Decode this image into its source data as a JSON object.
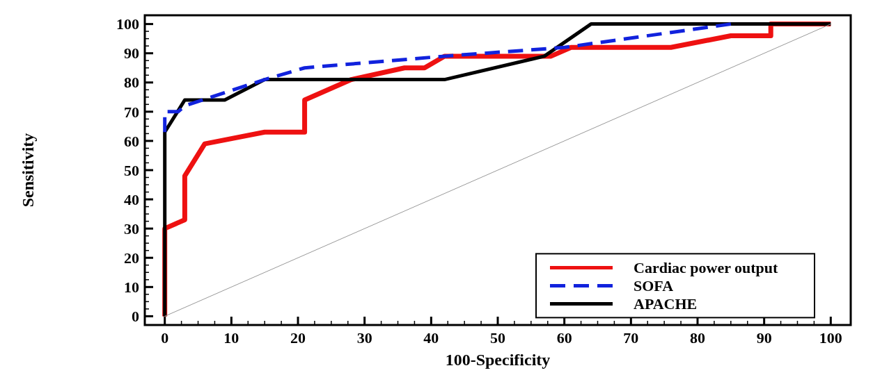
{
  "chart_data": {
    "type": "line",
    "xlabel": "100-Specificity",
    "ylabel": "Sensitivity",
    "xlim": [
      -3,
      103
    ],
    "ylim": [
      -3,
      103
    ],
    "xticks": [
      0,
      10,
      20,
      30,
      40,
      50,
      60,
      70,
      80,
      90,
      100
    ],
    "yticks": [
      0,
      10,
      20,
      30,
      40,
      50,
      60,
      70,
      80,
      90,
      100
    ],
    "grid": false,
    "legend": "bottom right",
    "series": [
      {
        "name": "Cardiac power output",
        "color": "#ee1111",
        "line_style": "solid",
        "x": [
          0,
          0,
          3,
          3,
          6,
          15,
          21,
          21,
          28,
          36,
          39,
          42,
          58,
          61,
          76,
          85,
          91,
          91,
          100
        ],
        "values": [
          0,
          30,
          33,
          48,
          59,
          63,
          63,
          74,
          81,
          85,
          85,
          89,
          89,
          92,
          92,
          96,
          96,
          100,
          100
        ]
      },
      {
        "name": "SOFA",
        "color": "#1122dd",
        "line_style": "dashed",
        "x": [
          0,
          0,
          2,
          3,
          15,
          21,
          42,
          60,
          85
        ],
        "values": [
          63,
          70,
          70,
          72,
          81,
          85,
          89,
          92,
          100
        ]
      },
      {
        "name": "APACHE",
        "color": "#000000",
        "line_style": "solid",
        "x": [
          0,
          0,
          3,
          9,
          15,
          42,
          57,
          64,
          100
        ],
        "values": [
          0,
          63,
          74,
          74,
          81,
          81,
          89,
          100,
          100
        ]
      },
      {
        "color": "#999999",
        "line_style": "solid",
        "x": [
          0,
          100
        ],
        "values": [
          0,
          100
        ]
      }
    ]
  }
}
